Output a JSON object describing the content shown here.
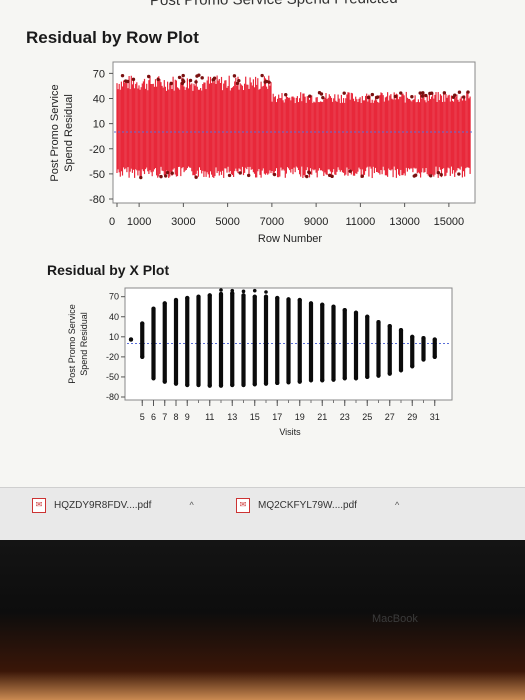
{
  "page_header": "Post Promo Service Spend Predicted",
  "downloads": [
    {
      "label": "HQZDY9R8FDV....pdf",
      "icon": "pdf-file-icon",
      "expand_icon": "chevron-up-icon"
    },
    {
      "label": "MQ2CKFYL79W....pdf",
      "icon": "pdf-file-icon",
      "expand_icon": "chevron-up-icon"
    }
  ],
  "device_label": "MacBook",
  "colors": {
    "row_series": "#e8283a",
    "x_series": "#0b0b0b",
    "reference_line": "#5a6fd8"
  },
  "chart_data": [
    {
      "type": "scatter",
      "title": "Residual by Row Plot",
      "xlabel": "Row Number",
      "ylabel": "Post Promo Service Spend Residual",
      "x_ticks": [
        "0",
        "1000",
        "3000",
        "5000",
        "7000",
        "9000",
        "11000",
        "13000",
        "15000"
      ],
      "y_ticks": [
        "70",
        "40",
        "10",
        "-20",
        "-50",
        "-80"
      ],
      "xlim": [
        0,
        16000
      ],
      "ylim": [
        -80,
        80
      ],
      "reference_line_y": 0,
      "grid": false,
      "series": [
        {
          "x_start": 0,
          "x_end": 7000,
          "low": -55,
          "high": 68
        },
        {
          "x_start": 7000,
          "x_end": 16000,
          "low": -55,
          "high": 48
        }
      ]
    },
    {
      "type": "scatter",
      "title": "Residual by X Plot",
      "xlabel": "Visits",
      "ylabel": "Post Promo Service Spend Residual",
      "x_ticks": [
        "5",
        "6",
        "7",
        "8",
        "9",
        "11",
        "13",
        "15",
        "17",
        "19",
        "21",
        "23",
        "25",
        "27",
        "29",
        "31"
      ],
      "y_ticks": [
        "70",
        "40",
        "10",
        "-20",
        "-50",
        "-80"
      ],
      "xlim": [
        4,
        32
      ],
      "ylim": [
        -80,
        80
      ],
      "reference_line_y": 0,
      "grid": false,
      "points": [
        {
          "x": 4,
          "low": 6,
          "high": 6
        },
        {
          "x": 5,
          "low": -20,
          "high": 30
        },
        {
          "x": 6,
          "low": -52,
          "high": 52
        },
        {
          "x": 7,
          "low": -57,
          "high": 60
        },
        {
          "x": 8,
          "low": -60,
          "high": 65
        },
        {
          "x": 9,
          "low": -62,
          "high": 68
        },
        {
          "x": 10,
          "low": -62,
          "high": 70
        },
        {
          "x": 11,
          "low": -63,
          "high": 72
        },
        {
          "x": 12,
          "low": -63,
          "high": 74
        },
        {
          "x": 13,
          "low": -62,
          "high": 75
        },
        {
          "x": 14,
          "low": -62,
          "high": 72
        },
        {
          "x": 15,
          "low": -61,
          "high": 70
        },
        {
          "x": 16,
          "low": -60,
          "high": 70
        },
        {
          "x": 17,
          "low": -59,
          "high": 68
        },
        {
          "x": 18,
          "low": -58,
          "high": 66
        },
        {
          "x": 19,
          "low": -57,
          "high": 65
        },
        {
          "x": 20,
          "low": -55,
          "high": 60
        },
        {
          "x": 21,
          "low": -55,
          "high": 58
        },
        {
          "x": 22,
          "low": -54,
          "high": 55
        },
        {
          "x": 23,
          "low": -52,
          "high": 50
        },
        {
          "x": 24,
          "low": -52,
          "high": 46
        },
        {
          "x": 25,
          "low": -50,
          "high": 40
        },
        {
          "x": 26,
          "low": -48,
          "high": 32
        },
        {
          "x": 27,
          "low": -45,
          "high": 26
        },
        {
          "x": 28,
          "low": -40,
          "high": 20
        },
        {
          "x": 29,
          "low": -34,
          "high": 10
        },
        {
          "x": 30,
          "low": -24,
          "high": 8
        },
        {
          "x": 31,
          "low": -20,
          "high": 6
        }
      ]
    }
  ]
}
